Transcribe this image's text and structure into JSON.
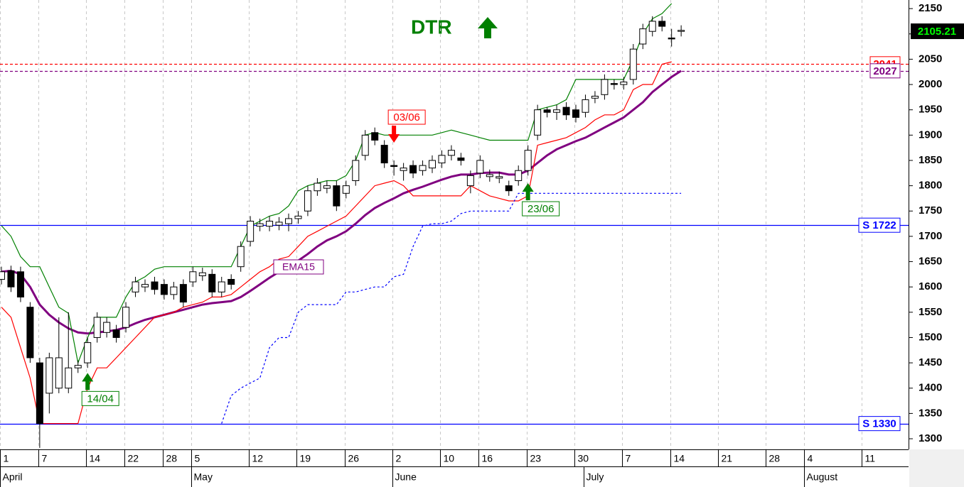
{
  "chart_data": {
    "type": "candlestick",
    "title": "DTR",
    "xlim": [
      0,
      94.9
    ],
    "xticks": [
      {
        "value": 0,
        "label": "1"
      },
      {
        "value": 4,
        "label": "7"
      },
      {
        "value": 9,
        "label": "14"
      },
      {
        "value": 13,
        "label": "22"
      },
      {
        "value": 17,
        "label": "28"
      },
      {
        "value": 20,
        "label": "5"
      },
      {
        "value": 26,
        "label": "12"
      },
      {
        "value": 31,
        "label": "19"
      },
      {
        "value": 36,
        "label": "26"
      },
      {
        "value": 41,
        "label": "2"
      },
      {
        "value": 46,
        "label": "10"
      },
      {
        "value": 50,
        "label": "16"
      },
      {
        "value": 55,
        "label": "23"
      },
      {
        "value": 60,
        "label": "30"
      },
      {
        "value": 65,
        "label": "7"
      },
      {
        "value": 70,
        "label": "14"
      },
      {
        "value": 75,
        "label": "21"
      },
      {
        "value": 80,
        "label": "28"
      },
      {
        "value": 84,
        "label": "4"
      },
      {
        "value": 90,
        "label": "11"
      }
    ],
    "month_ticks": [
      {
        "value": 0,
        "label": "April"
      },
      {
        "value": 20,
        "label": "May"
      },
      {
        "value": 41,
        "label": "June"
      },
      {
        "value": 61,
        "label": "July"
      },
      {
        "value": 84,
        "label": "August"
      }
    ],
    "ylim": [
      1279,
      2167
    ],
    "yticks": [
      1300,
      1350,
      1400,
      1450,
      1500,
      1550,
      1600,
      1650,
      1700,
      1750,
      1800,
      1850,
      1900,
      1950,
      2000,
      2050,
      2100,
      2150
    ],
    "grid": true,
    "open": [
      1615,
      1632,
      1630,
      1560,
      1450,
      1390,
      1400,
      1400,
      1440,
      1450,
      1500,
      1510,
      1515,
      1520,
      1590,
      1600,
      1610,
      1605,
      1585,
      1605,
      1610,
      1622,
      1625,
      1590,
      1615,
      1640,
      1690,
      1720,
      1720,
      1722,
      1725,
      1735,
      1750,
      1790,
      1795,
      1800,
      1785,
      1810,
      1860,
      1905,
      1880,
      1840,
      1830,
      1840,
      1830,
      1835,
      1845,
      1860,
      1855,
      1800,
      1825,
      1818,
      1815,
      1800,
      1810,
      1830,
      1900,
      1950,
      1945,
      1955,
      1950,
      1945,
      1973,
      1980,
      2002,
      2000,
      2010,
      2080,
      2105,
      2125,
      2092,
      2105
    ],
    "high": [
      1640,
      1642,
      1640,
      1570,
      1460,
      1470,
      1540,
      1550,
      1455,
      1500,
      1550,
      1540,
      1525,
      1570,
      1620,
      1615,
      1620,
      1615,
      1610,
      1615,
      1640,
      1638,
      1635,
      1620,
      1625,
      1690,
      1740,
      1735,
      1740,
      1738,
      1745,
      1750,
      1800,
      1815,
      1810,
      1810,
      1810,
      1860,
      1910,
      1915,
      1890,
      1850,
      1845,
      1850,
      1850,
      1860,
      1870,
      1880,
      1865,
      1830,
      1860,
      1832,
      1828,
      1810,
      1840,
      1880,
      1960,
      1955,
      1960,
      1965,
      1960,
      1980,
      1987,
      2020,
      2010,
      2015,
      2080,
      2120,
      2135,
      2135,
      2110,
      2117
    ],
    "low": [
      1605,
      1590,
      1570,
      1450,
      1282,
      1350,
      1390,
      1390,
      1430,
      1440,
      1490,
      1500,
      1490,
      1510,
      1580,
      1590,
      1585,
      1575,
      1575,
      1560,
      1600,
      1612,
      1580,
      1580,
      1595,
      1630,
      1680,
      1710,
      1710,
      1712,
      1710,
      1725,
      1740,
      1780,
      1785,
      1750,
      1775,
      1800,
      1850,
      1880,
      1835,
      1820,
      1810,
      1815,
      1820,
      1825,
      1835,
      1850,
      1840,
      1785,
      1815,
      1808,
      1805,
      1780,
      1800,
      1820,
      1890,
      1935,
      1930,
      1930,
      1925,
      1935,
      1963,
      1970,
      1990,
      1990,
      2000,
      2070,
      2095,
      2105,
      2075,
      2095
    ],
    "close": [
      1630,
      1600,
      1580,
      1460,
      1330,
      1460,
      1460,
      1440,
      1445,
      1490,
      1540,
      1530,
      1500,
      1560,
      1610,
      1605,
      1595,
      1585,
      1600,
      1570,
      1630,
      1628,
      1590,
      1610,
      1605,
      1680,
      1730,
      1725,
      1730,
      1728,
      1735,
      1740,
      1790,
      1805,
      1800,
      1760,
      1800,
      1850,
      1900,
      1890,
      1845,
      1838,
      1835,
      1825,
      1840,
      1850,
      1860,
      1870,
      1850,
      1820,
      1850,
      1822,
      1818,
      1790,
      1830,
      1870,
      1950,
      1945,
      1950,
      1940,
      1935,
      1970,
      1977,
      2010,
      2000,
      2005,
      2070,
      2110,
      2125,
      2115,
      2090,
      2107
    ],
    "series": [
      {
        "name": "EMA15",
        "color": "#800080",
        "values": [
          1630,
          1632,
          1625,
          1600,
          1565,
          1545,
          1530,
          1518,
          1510,
          1508,
          1510,
          1512,
          1515,
          1520,
          1528,
          1535,
          1540,
          1545,
          1550,
          1555,
          1560,
          1565,
          1568,
          1570,
          1572,
          1580,
          1592,
          1605,
          1618,
          1630,
          1642,
          1652,
          1665,
          1680,
          1692,
          1700,
          1710,
          1725,
          1742,
          1756,
          1766,
          1775,
          1785,
          1792,
          1798,
          1805,
          1812,
          1818,
          1822,
          1822,
          1825,
          1826,
          1826,
          1822,
          1822,
          1830,
          1845,
          1860,
          1872,
          1880,
          1888,
          1895,
          1905,
          1915,
          1925,
          1935,
          1950,
          1965,
          1985,
          2000,
          2015,
          2027
        ]
      },
      {
        "color": "#008000",
        "values": [
          1721,
          1700,
          1660,
          1640,
          1640,
          1600,
          1560,
          1548,
          1450,
          1500,
          1540,
          1540,
          1540,
          1580,
          1610,
          1620,
          1635,
          1640,
          1640,
          1640,
          1640,
          1640,
          1640,
          1640,
          1640,
          1680,
          1720,
          1730,
          1740,
          1745,
          1760,
          1790,
          1800,
          1805,
          1810,
          1810,
          1820,
          1850,
          1900,
          1905,
          1900,
          1900,
          1900,
          1900,
          1900,
          1900,
          1905,
          1910,
          1905,
          1900,
          1895,
          1890,
          1890,
          1890,
          1890,
          1890,
          1950,
          1955,
          1960,
          1970,
          2010,
          2010,
          2010,
          2010,
          2010,
          2010,
          2050,
          2100,
          2130,
          2140,
          2160,
          null
        ]
      },
      {
        "color": "#ff0000",
        "values": [
          1560,
          1540,
          1480,
          1420,
          1330,
          1330,
          1330,
          1330,
          1330,
          1400,
          1440,
          1440,
          1460,
          1480,
          1500,
          1520,
          1540,
          1545,
          1550,
          1560,
          1565,
          1570,
          1580,
          1580,
          1585,
          1600,
          1615,
          1630,
          1640,
          1655,
          1660,
          1680,
          1700,
          1710,
          1720,
          1730,
          1740,
          1760,
          1780,
          1800,
          1805,
          1810,
          1800,
          1780,
          1780,
          1780,
          1780,
          1780,
          1780,
          1800,
          1790,
          1780,
          1775,
          1770,
          1770,
          1780,
          1880,
          1885,
          1890,
          1895,
          1905,
          1915,
          1930,
          1940,
          1940,
          1950,
          1990,
          2000,
          2000,
          2040,
          2045,
          null
        ]
      },
      {
        "color": "#0000ff",
        "dashed": true,
        "values": [
          null,
          null,
          null,
          null,
          null,
          null,
          null,
          null,
          null,
          null,
          null,
          null,
          null,
          null,
          null,
          null,
          null,
          null,
          null,
          null,
          null,
          null,
          null,
          1330,
          1385,
          1400,
          1410,
          1420,
          1480,
          1500,
          1500,
          1550,
          1565,
          1565,
          1565,
          1565,
          1590,
          1590,
          1595,
          1600,
          1600,
          1620,
          1625,
          1680,
          1720,
          1725,
          1725,
          1730,
          1745,
          1750,
          1750,
          1750,
          1750,
          1750,
          1785,
          1785,
          1785,
          1785,
          1785,
          1785,
          1785,
          1785,
          1785,
          1785,
          1785,
          1785,
          1785,
          1785,
          1785,
          1785,
          1785,
          1785
        ]
      }
    ],
    "levels": [
      {
        "value": 2041,
        "label": "2041",
        "color": "#ff0000",
        "dashed": true
      },
      {
        "value": 2027,
        "label": "2027",
        "color": "#800080",
        "dashed": true
      },
      {
        "value": 1722,
        "label": "S 1722",
        "color": "#0000ff",
        "dashed": false
      },
      {
        "value": 1330,
        "label": "S 1330",
        "color": "#0000ff",
        "dashed": false
      }
    ],
    "signals": [
      {
        "label": "14/04",
        "index": 9,
        "value": 1430,
        "direction": "up",
        "color": "#008000"
      },
      {
        "label": "03/06",
        "index": 41,
        "value": 1885,
        "direction": "down",
        "color": "#ff0000"
      },
      {
        "label": "23/06",
        "index": 55,
        "value": 1805,
        "direction": "up",
        "color": "#008000"
      }
    ],
    "last_price": 2105.21
  }
}
